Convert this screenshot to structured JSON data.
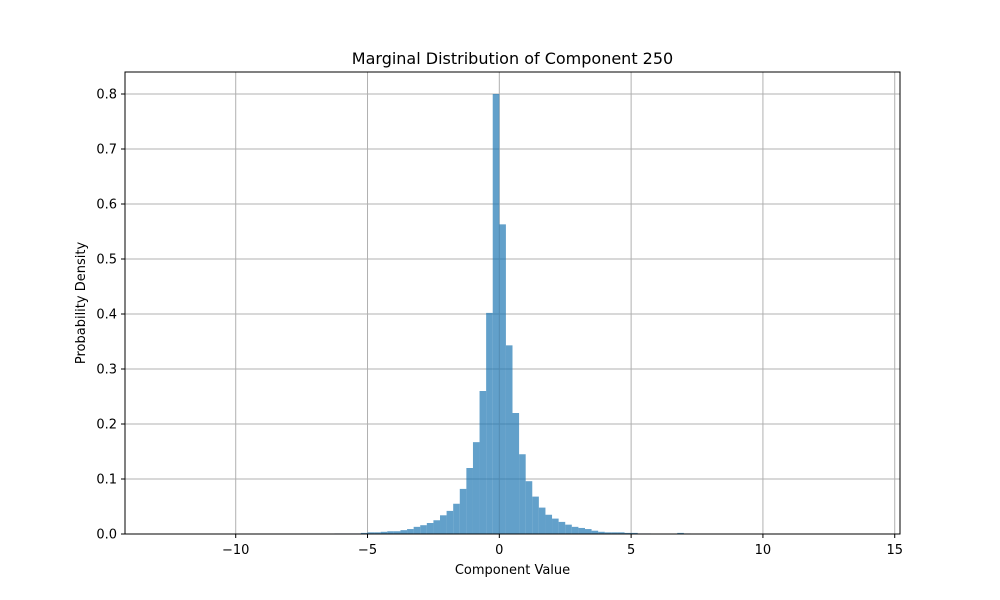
{
  "chart_data": {
    "type": "bar",
    "title": "Marginal Distribution of Component 250",
    "xlabel": "Component Value",
    "ylabel": "Probability Density",
    "xlim": [
      -14.2,
      15.2
    ],
    "ylim": [
      0,
      0.84
    ],
    "xticks": [
      -10,
      -5,
      0,
      5,
      10,
      15
    ],
    "xtick_labels": [
      "−10",
      "−5",
      "0",
      "5",
      "10",
      "15"
    ],
    "yticks": [
      0.0,
      0.1,
      0.2,
      0.3,
      0.4,
      0.5,
      0.6,
      0.7,
      0.8
    ],
    "ytick_labels": [
      "0.0",
      "0.1",
      "0.2",
      "0.3",
      "0.4",
      "0.5",
      "0.6",
      "0.7",
      "0.8"
    ],
    "grid": true,
    "bar_color": "#1f77b4",
    "bar_opacity": 0.7,
    "bin_width": 0.25,
    "bins": [
      {
        "x": -6.25,
        "y": 0.001
      },
      {
        "x": -6.0,
        "y": 0.001
      },
      {
        "x": -5.75,
        "y": 0.001
      },
      {
        "x": -5.5,
        "y": 0.001
      },
      {
        "x": -5.25,
        "y": 0.002
      },
      {
        "x": -5.0,
        "y": 0.003
      },
      {
        "x": -4.75,
        "y": 0.003
      },
      {
        "x": -4.5,
        "y": 0.004
      },
      {
        "x": -4.25,
        "y": 0.005
      },
      {
        "x": -4.0,
        "y": 0.005
      },
      {
        "x": -3.75,
        "y": 0.007
      },
      {
        "x": -3.5,
        "y": 0.009
      },
      {
        "x": -3.25,
        "y": 0.013
      },
      {
        "x": -3.0,
        "y": 0.016
      },
      {
        "x": -2.75,
        "y": 0.02
      },
      {
        "x": -2.5,
        "y": 0.025
      },
      {
        "x": -2.25,
        "y": 0.034
      },
      {
        "x": -2.0,
        "y": 0.042
      },
      {
        "x": -1.75,
        "y": 0.055
      },
      {
        "x": -1.5,
        "y": 0.082
      },
      {
        "x": -1.25,
        "y": 0.12
      },
      {
        "x": -1.0,
        "y": 0.167
      },
      {
        "x": -0.75,
        "y": 0.26
      },
      {
        "x": -0.5,
        "y": 0.402
      },
      {
        "x": -0.25,
        "y": 0.8
      },
      {
        "x": 0.0,
        "y": 0.563
      },
      {
        "x": 0.25,
        "y": 0.343
      },
      {
        "x": 0.5,
        "y": 0.22
      },
      {
        "x": 0.75,
        "y": 0.145
      },
      {
        "x": 1.0,
        "y": 0.096
      },
      {
        "x": 1.25,
        "y": 0.068
      },
      {
        "x": 1.5,
        "y": 0.048
      },
      {
        "x": 1.75,
        "y": 0.035
      },
      {
        "x": 2.0,
        "y": 0.028
      },
      {
        "x": 2.25,
        "y": 0.022
      },
      {
        "x": 2.5,
        "y": 0.017
      },
      {
        "x": 2.75,
        "y": 0.013
      },
      {
        "x": 3.0,
        "y": 0.011
      },
      {
        "x": 3.25,
        "y": 0.009
      },
      {
        "x": 3.5,
        "y": 0.006
      },
      {
        "x": 3.75,
        "y": 0.004
      },
      {
        "x": 4.0,
        "y": 0.003
      },
      {
        "x": 4.25,
        "y": 0.003
      },
      {
        "x": 4.5,
        "y": 0.003
      },
      {
        "x": 4.75,
        "y": 0.002
      },
      {
        "x": 5.0,
        "y": 0.002
      },
      {
        "x": 5.25,
        "y": 0.001
      },
      {
        "x": 5.5,
        "y": 0.001
      },
      {
        "x": 6.75,
        "y": 0.002
      },
      {
        "x": 7.0,
        "y": 0.001
      }
    ]
  }
}
